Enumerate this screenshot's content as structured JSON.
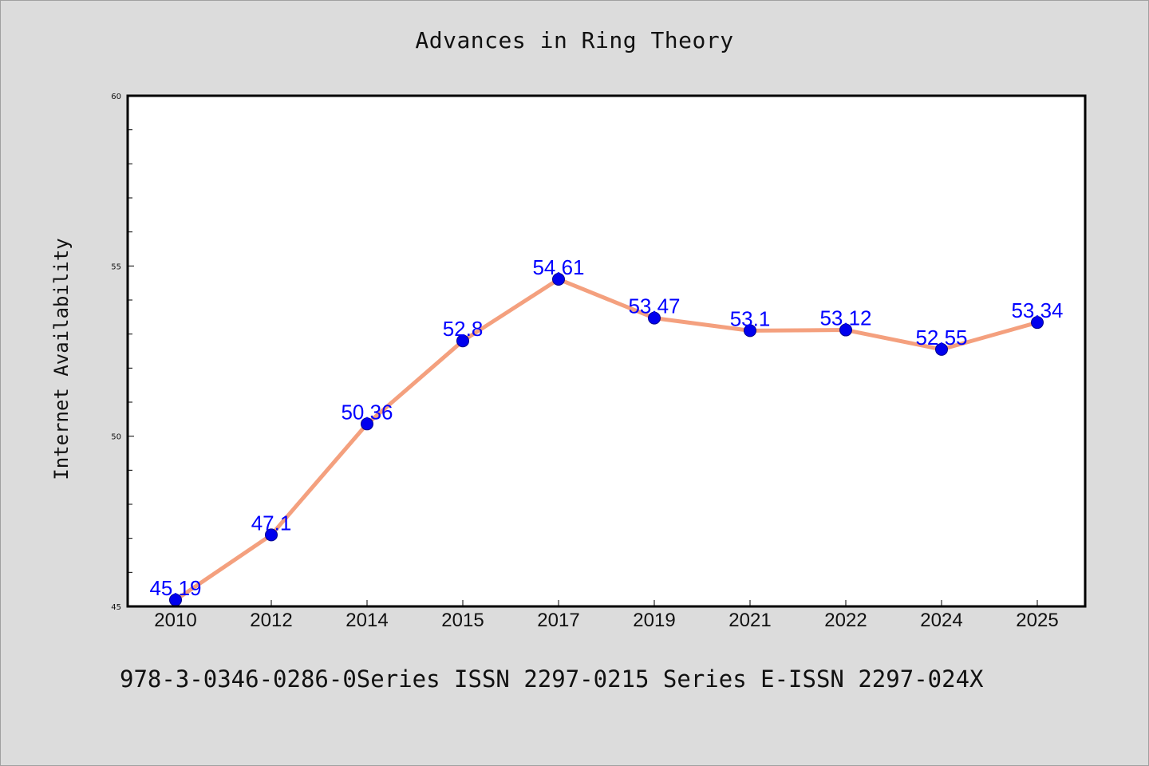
{
  "colors": {
    "background": "#dcdcdc",
    "plot_background": "#ffffff",
    "line": "#f4a07e",
    "marker": "#0000ee",
    "data_label": "#0000ff"
  },
  "footer": {
    "text": "978-3-0346-0286-0Series ISSN 2297-0215 Series E-ISSN 2297-024X"
  },
  "chart_data": {
    "type": "line",
    "title": "Advances in Ring Theory",
    "xlabel": "",
    "ylabel": "Internet Availability",
    "categories": [
      "2010",
      "2012",
      "2014",
      "2015",
      "2017",
      "2019",
      "2021",
      "2022",
      "2024",
      "2025"
    ],
    "series": [
      {
        "values": [
          45.19,
          47.1,
          50.36,
          52.8,
          54.61,
          53.47,
          53.1,
          53.12,
          52.55,
          53.34
        ],
        "labels": [
          "45.19",
          "47.1",
          "50.36",
          "52.8",
          "54.61",
          "53.47",
          "53.1",
          "53.12",
          "52.55",
          "53.34"
        ]
      }
    ],
    "ylim": [
      45,
      60
    ],
    "yticks": [
      45,
      50,
      55,
      60
    ],
    "grid": false,
    "legend": "none"
  }
}
